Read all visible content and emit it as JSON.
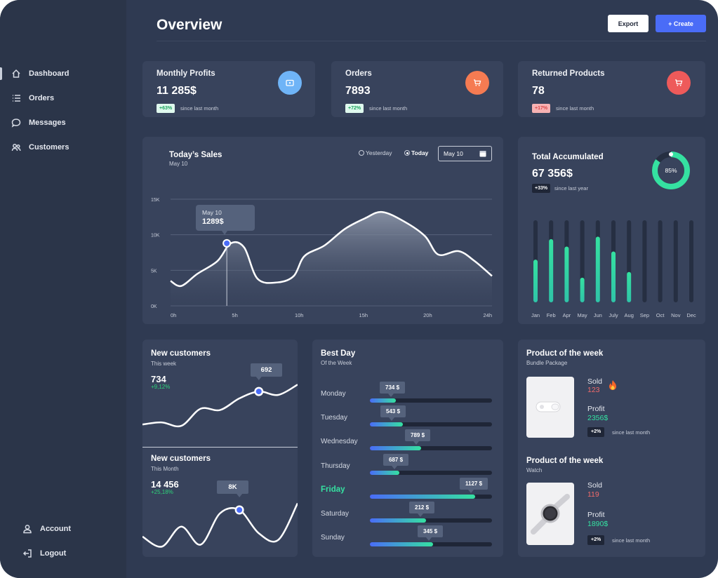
{
  "header": {
    "title": "Overview",
    "export_label": "Export",
    "create_label": "+ Create"
  },
  "sidebar": {
    "items": [
      {
        "label": "Dashboard",
        "icon": "home-icon"
      },
      {
        "label": "Orders",
        "icon": "list-icon"
      },
      {
        "label": "Messages",
        "icon": "chat-icon"
      },
      {
        "label": "Customers",
        "icon": "users-icon"
      }
    ],
    "bottom": [
      {
        "label": "Account",
        "icon": "user-icon"
      },
      {
        "label": "Logout",
        "icon": "logout-icon"
      }
    ]
  },
  "stats": [
    {
      "title": "Monthly Profits",
      "value": "11 285$",
      "badge": "+63%",
      "since": "since last month",
      "badge_color": "#35e1a1",
      "icon": "wallet-icon",
      "icon_color": "#6fb4f7"
    },
    {
      "title": "Orders",
      "value": "7893",
      "badge": "+72%",
      "since": "since last month",
      "badge_color": "#35e1a1",
      "icon": "cart-icon",
      "icon_color": "#f57b52"
    },
    {
      "title": "Returned Products",
      "value": "78",
      "badge": "+17%",
      "since": "since last month",
      "badge_color": "#f2888a",
      "icon": "cart-icon",
      "icon_color": "#ee5a5a"
    }
  ],
  "sales": {
    "title": "Today’s Sales",
    "subtitle": "May 10",
    "option_yesterday": "Yesterday",
    "option_today": "Today",
    "date_value": "May 10",
    "tooltip_date": "May 10",
    "tooltip_value": "1289$"
  },
  "accumulated": {
    "title": "Total Accumulated",
    "value": "67 356$",
    "badge": "+33%",
    "since": "since last year",
    "percent_label": "85%",
    "percent": 85
  },
  "new_customers_week": {
    "title": "New customers",
    "subtitle": "This week",
    "value": "734",
    "change": "+9,12%",
    "tooltip": "692"
  },
  "new_customers_month": {
    "title": "New customers",
    "subtitle": "This Month",
    "value": "14 456",
    "change": "+25,18%",
    "tooltip": "8K"
  },
  "best_day": {
    "title": "Best Day",
    "subtitle": "Of the Week",
    "days": [
      {
        "day": "Monday",
        "value": "734 $",
        "fill": 0.21
      },
      {
        "day": "Tuesday",
        "value": "543 $",
        "fill": 0.27
      },
      {
        "day": "Wednesday",
        "value": "789 $",
        "fill": 0.42
      },
      {
        "day": "Thursday",
        "value": "687 $",
        "fill": 0.24
      },
      {
        "day": "Friday",
        "value": "1127 $",
        "fill": 0.86
      },
      {
        "day": "Saturday",
        "value": "212 $",
        "fill": 0.46
      },
      {
        "day": "Sunday",
        "value": "345 $",
        "fill": 0.52
      }
    ],
    "active_day": "Friday"
  },
  "products": [
    {
      "title": "Product of the week",
      "subtitle": "Bundle Package",
      "sold_label": "Sold",
      "sold_value": "123",
      "profit_label": "Profit",
      "profit_value": "2356$",
      "badge": "+2%",
      "since": "since last month"
    },
    {
      "title": "Product of the week",
      "subtitle": "Watch",
      "sold_label": "Sold",
      "sold_value": "119",
      "profit_label": "Profit",
      "profit_value": "1890$",
      "badge": "+2%",
      "since": "since last month"
    }
  ],
  "colors": {
    "accent_blue": "#4a6cf7",
    "accent_green": "#35e1a1",
    "sold_red": "#f26b6b",
    "profit_green": "#35e1a1"
  },
  "chart_data": [
    {
      "type": "area",
      "title": "Today’s Sales",
      "x_ticks": [
        "0h",
        "5h",
        "10h",
        "15h",
        "20h",
        "24h"
      ],
      "y_ticks": [
        "0K",
        "5K",
        "10K",
        "15K"
      ],
      "ylim": [
        0,
        15000
      ],
      "xlim": [
        0,
        24
      ],
      "grid": true,
      "x": [
        0,
        0.8,
        2,
        3.5,
        4.5,
        5.5,
        6.5,
        8,
        9.2,
        10,
        11.5,
        13,
        14.5,
        15.8,
        17.5,
        19,
        20,
        21.5,
        22.7,
        24
      ],
      "y": [
        3500,
        2800,
        4500,
        6300,
        8800,
        8200,
        3800,
        3300,
        4200,
        7000,
        8500,
        10800,
        12300,
        13200,
        11800,
        9800,
        7200,
        7700,
        6300,
        4200
      ],
      "highlight": {
        "x": 4.2,
        "y": 8800
      }
    },
    {
      "type": "bar",
      "title": "Total Accumulated",
      "categories": [
        "Jan",
        "Feb",
        "Apr",
        "May",
        "Jun",
        "July",
        "Aug",
        "Sep",
        "Oct",
        "Nov",
        "Dec"
      ],
      "values": [
        52,
        77,
        68,
        30,
        80,
        62,
        37,
        0,
        0,
        0,
        0
      ],
      "ylim": [
        0,
        100
      ]
    },
    {
      "type": "line",
      "title": "New customers",
      "x": [
        0,
        1,
        2,
        3,
        4,
        5,
        6,
        7,
        8
      ],
      "y": [
        7,
        10,
        5,
        30,
        28,
        45,
        55,
        50,
        65
      ],
      "ylim": [
        0,
        100
      ],
      "highlight_index": 6
    },
    {
      "type": "line",
      "title": "New customers",
      "x": [
        0,
        1,
        2,
        3,
        4,
        5,
        6,
        7,
        8
      ],
      "y": [
        20,
        5,
        35,
        8,
        55,
        60,
        25,
        15,
        70
      ],
      "ylim": [
        0,
        100
      ],
      "highlight_index": 5
    }
  ]
}
